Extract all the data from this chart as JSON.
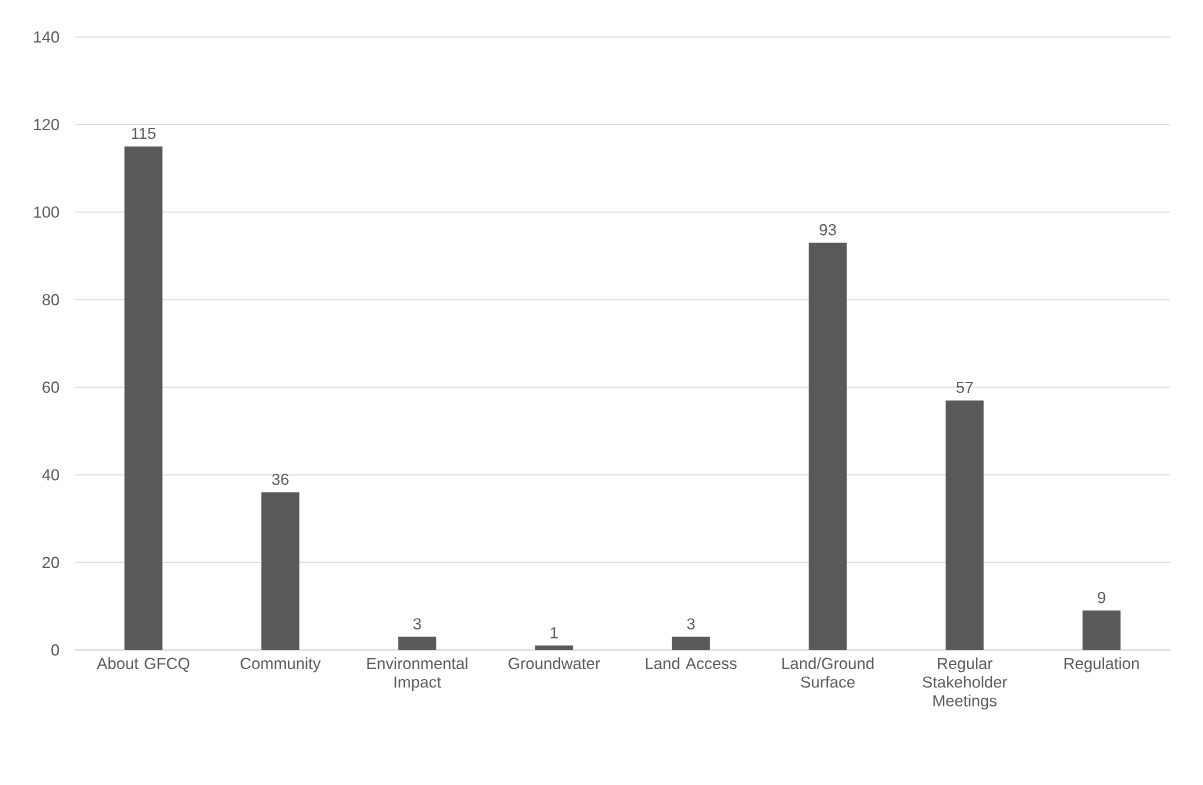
{
  "chart_data": {
    "type": "bar",
    "categories": [
      "About GFCQ",
      "Community",
      "Environmental Impact",
      "Groundwater",
      "Land Access",
      "Land/Ground Surface",
      "Regular Stakeholder Meetings",
      "Regulation"
    ],
    "values": [
      115,
      36,
      3,
      1,
      3,
      93,
      57,
      9
    ],
    "color": "#595959",
    "ylim": [
      0,
      140
    ],
    "yticks": [
      0,
      20,
      40,
      60,
      80,
      100,
      120,
      140
    ],
    "grid": "y",
    "data_labels": true
  }
}
